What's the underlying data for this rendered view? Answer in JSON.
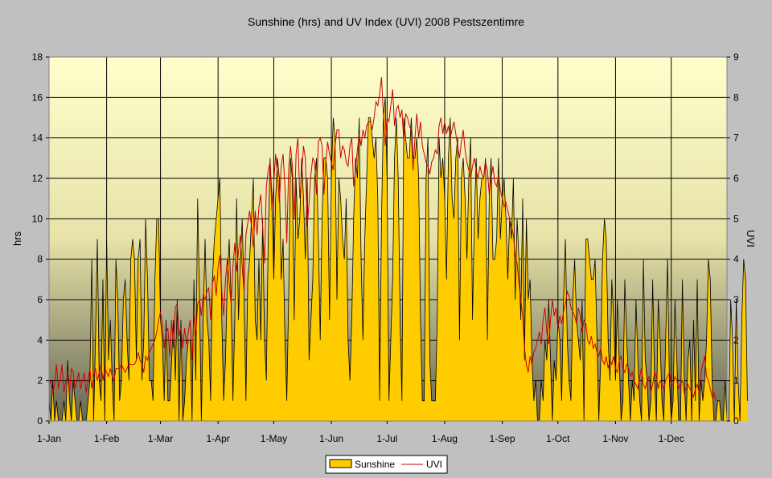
{
  "chart_data": {
    "type": "area+line",
    "title": "Sunshine (hrs) and UV Index (UVI) 2008 Pestszentimre",
    "ylabel_left": "hrs",
    "ylabel_right": "UVI",
    "ylim_left": [
      0,
      18
    ],
    "ylim_right": [
      0,
      9
    ],
    "yticks_left": [
      "0",
      "2",
      "4",
      "6",
      "8",
      "10",
      "12",
      "14",
      "16",
      "18"
    ],
    "yticks_right": [
      "0",
      "1",
      "2",
      "3",
      "4",
      "5",
      "6",
      "7",
      "8",
      "9"
    ],
    "xlim_days": [
      1,
      366
    ],
    "x_ticks": [
      {
        "label": "1-Jan",
        "day": 1
      },
      {
        "label": "1-Feb",
        "day": 32
      },
      {
        "label": "1-Mar",
        "day": 61
      },
      {
        "label": "1-Apr",
        "day": 92
      },
      {
        "label": "1-May",
        "day": 122
      },
      {
        "label": "1-Jun",
        "day": 153
      },
      {
        "label": "1-Jul",
        "day": 183
      },
      {
        "label": "1-Aug",
        "day": 214
      },
      {
        "label": "1-Sep",
        "day": 245
      },
      {
        "label": "1-Oct",
        "day": 275
      },
      {
        "label": "1-Nov",
        "day": 306
      },
      {
        "label": "1-Dec",
        "day": 336
      }
    ],
    "colors": {
      "sunshine_fill": "#ffcc00",
      "sunshine_stroke": "#000000",
      "uvi_line": "#cc0000",
      "grid": "#000000"
    },
    "series": [
      {
        "name": "Sunshine",
        "axis": "left",
        "kind": "area",
        "values": [
          1,
          0,
          2,
          0,
          1,
          0,
          0,
          0,
          1,
          0,
          3,
          1,
          0,
          2,
          1,
          0,
          0,
          1,
          0,
          0,
          0,
          1,
          2,
          8,
          0,
          4,
          9,
          2,
          1,
          7,
          0,
          9,
          3,
          5,
          2,
          0,
          8,
          6,
          1,
          2,
          6,
          7,
          4,
          2,
          8,
          9,
          8,
          3,
          8,
          9,
          2,
          4,
          10,
          7,
          2,
          2,
          1,
          7,
          10,
          10,
          5,
          4,
          1,
          5,
          1,
          1,
          3,
          5,
          2,
          6,
          0,
          5,
          0,
          1,
          3,
          4,
          4,
          0,
          7,
          2,
          11,
          6,
          0,
          5,
          9,
          5,
          4,
          1,
          7,
          9,
          10,
          11,
          12,
          5,
          1,
          3,
          7,
          9,
          6,
          1,
          5,
          11,
          5,
          8,
          10,
          6,
          1,
          7,
          8,
          10,
          12,
          5,
          4,
          8,
          4,
          10,
          4,
          2,
          9,
          13,
          11,
          7,
          11,
          13,
          12,
          7,
          9,
          4,
          1,
          6,
          13,
          12,
          5,
          12,
          9,
          10,
          13,
          11,
          8,
          12,
          3,
          5,
          7,
          12,
          13,
          9,
          4,
          10,
          13,
          13,
          12,
          5,
          12,
          15,
          14,
          6,
          12,
          11,
          9,
          8,
          11,
          4,
          2,
          5,
          10,
          13,
          12,
          15,
          8,
          4,
          9,
          12,
          15,
          15,
          14,
          13,
          14,
          11,
          1,
          10,
          15,
          16,
          12,
          1,
          4,
          7,
          13,
          15,
          12,
          5,
          1,
          15,
          14,
          13,
          13,
          15,
          13,
          13,
          14,
          12,
          5,
          1,
          1,
          12,
          14,
          3,
          1,
          1,
          1,
          5,
          14,
          12,
          13,
          11,
          7,
          13,
          15,
          11,
          10,
          13,
          14,
          4,
          12,
          13,
          11,
          8,
          12,
          14,
          5,
          10,
          13,
          9,
          11,
          12,
          12,
          13,
          4,
          11,
          13,
          8,
          8,
          9,
          13,
          9,
          11,
          12,
          10,
          7,
          10,
          9,
          12,
          6,
          10,
          8,
          5,
          11,
          3,
          10,
          6,
          7,
          3,
          1,
          2,
          0,
          0,
          2,
          1,
          4,
          3,
          6,
          3,
          0,
          3,
          2,
          5,
          4,
          1,
          6,
          9,
          4,
          2,
          1,
          6,
          8,
          5,
          4,
          3,
          6,
          0,
          9,
          9,
          8,
          7,
          7,
          8,
          4,
          0,
          3,
          8,
          10,
          9,
          4,
          2,
          7,
          5,
          2,
          6,
          3,
          0,
          1,
          7,
          4,
          2,
          0,
          2,
          1,
          6,
          3,
          1,
          0,
          8,
          3,
          2,
          0,
          1,
          7,
          2,
          0,
          6,
          4,
          1,
          0,
          4,
          8,
          2,
          0,
          1,
          6,
          3,
          0,
          0,
          7,
          2,
          0,
          3,
          4,
          0,
          5,
          1,
          7,
          0,
          2,
          1,
          2,
          4,
          8,
          7,
          2,
          0,
          0,
          1,
          1,
          0,
          0,
          2,
          0,
          0,
          6,
          4,
          0,
          6,
          2,
          0,
          5,
          8,
          7,
          1
        ]
      },
      {
        "name": "UVI",
        "axis": "right",
        "kind": "line",
        "values": [
          0.9,
          1.0,
          0.7,
          0.9,
          1.4,
          0.8,
          1.0,
          1.4,
          0.7,
          1.0,
          1.1,
          0.7,
          1.3,
          1.2,
          0.8,
          1.0,
          1.2,
          0.8,
          1.0,
          1.2,
          0.7,
          1.0,
          1.3,
          0.8,
          1.1,
          1.3,
          1.0,
          1.2,
          1.4,
          1.0,
          1.3,
          1.2,
          1.1,
          1.3,
          1.1,
          1.0,
          1.3,
          1.3,
          1.3,
          1.4,
          1.3,
          1.2,
          1.3,
          1.4,
          1.4,
          1.4,
          1.4,
          1.5,
          1.7,
          1.5,
          1.4,
          1.2,
          1.6,
          1.5,
          1.7,
          1.8,
          1.9,
          2.0,
          2.2,
          2.5,
          2.7,
          2.4,
          1.8,
          2.2,
          2.3,
          1.6,
          2.5,
          1.8,
          2.8,
          2.9,
          2.1,
          2.3,
          1.8,
          2.3,
          1.9,
          2.2,
          2.5,
          1.5,
          2.6,
          2.1,
          2.9,
          3.0,
          2.6,
          3.1,
          3.0,
          3.2,
          3.3,
          2.5,
          3.4,
          3.6,
          3.1,
          3.8,
          4.1,
          3.2,
          2.6,
          3.5,
          4.0,
          3.4,
          2.9,
          3.8,
          4.4,
          3.7,
          4.2,
          4.6,
          3.8,
          3.2,
          4.6,
          4.9,
          5.2,
          4.8,
          4.3,
          5.2,
          4.6,
          5.3,
          5.6,
          4.8,
          3.9,
          5.8,
          6.2,
          6.4,
          5.2,
          5.9,
          6.6,
          6.1,
          5.4,
          6.3,
          6.6,
          5.8,
          4.4,
          6.2,
          6.8,
          6.3,
          5.0,
          6.6,
          7.0,
          5.5,
          6.1,
          6.8,
          6.5,
          4.8,
          5.4,
          6.1,
          6.5,
          6.4,
          5.6,
          6.9,
          7.0,
          6.8,
          5.6,
          6.4,
          6.9,
          6.6,
          6.4,
          6.2,
          6.8,
          7.2,
          7.2,
          6.5,
          6.8,
          6.7,
          6.4,
          6.3,
          6.8,
          7.0,
          5.8,
          6.2,
          6.7,
          7.1,
          6.8,
          7.2,
          7.0,
          7.3,
          7.4,
          7.4,
          7.2,
          7.5,
          7.9,
          7.8,
          8.1,
          8.5,
          7.6,
          6.8,
          7.5,
          7.4,
          7.8,
          8.2,
          7.3,
          7.7,
          7.8,
          7.5,
          7.7,
          6.9,
          7.6,
          7.5,
          7.3,
          7.2,
          6.2,
          7.0,
          7.6,
          7.0,
          7.4,
          6.8,
          6.6,
          6.4,
          6.3,
          6.1,
          6.4,
          6.5,
          6.7,
          6.6,
          7.3,
          7.5,
          7.1,
          7.4,
          7.1,
          7.3,
          7.0,
          7.2,
          7.4,
          7.1,
          6.8,
          6.5,
          6.9,
          7.2,
          6.7,
          6.4,
          6.2,
          6.0,
          6.3,
          6.5,
          6.2,
          6.0,
          6.3,
          6.1,
          6.0,
          6.4,
          6.2,
          5.6,
          6.0,
          6.3,
          5.9,
          5.8,
          6.1,
          5.7,
          5.5,
          5.3,
          5.4,
          5.2,
          5.0,
          4.8,
          4.6,
          4.1,
          3.9,
          3.4,
          3.0,
          2.6,
          1.8,
          1.4,
          1.2,
          1.6,
          1.4,
          1.7,
          1.8,
          2.0,
          2.2,
          1.9,
          2.5,
          2.8,
          2.2,
          1.9,
          2.5,
          3.0,
          2.6,
          2.8,
          2.3,
          2.6,
          2.4,
          2.7,
          2.9,
          3.2,
          3.1,
          2.8,
          2.7,
          2.6,
          2.4,
          2.8,
          2.6,
          2.2,
          2.5,
          2.4,
          2.0,
          1.9,
          2.1,
          1.8,
          1.9,
          1.7,
          1.6,
          1.8,
          1.5,
          1.4,
          1.6,
          1.3,
          1.5,
          1.4,
          1.6,
          1.3,
          1.2,
          1.5,
          1.6,
          1.3,
          1.2,
          1.4,
          1.3,
          1.1,
          1.2,
          1.0,
          0.9,
          0.8,
          1.1,
          1.3,
          0.9,
          0.8,
          1.0,
          1.1,
          0.7,
          0.9,
          1.2,
          1.1,
          0.8,
          1.0,
          0.9,
          0.8,
          1.0,
          1.1,
          1.2,
          0.9,
          0.9,
          1.1,
          1.0,
          0.8,
          0.9,
          1.0,
          0.7,
          0.8,
          0.9,
          0.8,
          0.7,
          0.6,
          0.8,
          0.9,
          0.7,
          1.2,
          1.4,
          1.6,
          1.1,
          1.0,
          0.8,
          0.6,
          0.7,
          0.5
        ]
      }
    ],
    "legend": {
      "entries": [
        "Sunshine",
        "UVI"
      ],
      "position": "bottom-center"
    }
  }
}
